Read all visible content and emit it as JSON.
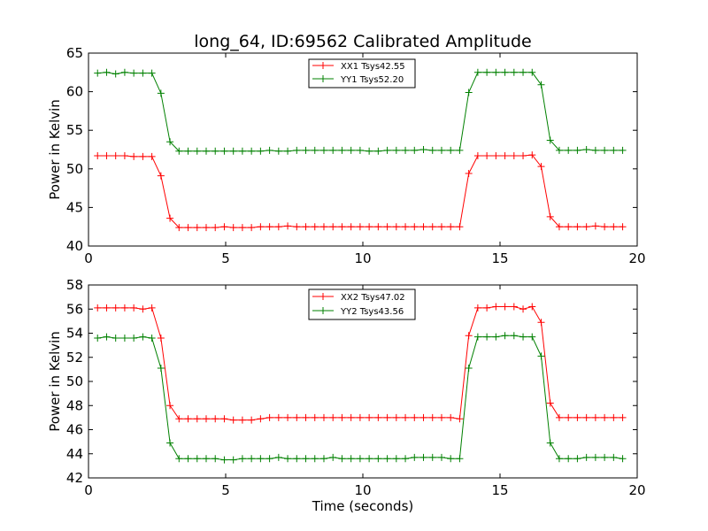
{
  "chart_data": [
    {
      "type": "line",
      "title": "long_64, ID:69562 Calibrated Amplitude",
      "xlabel": "",
      "ylabel": "Power in Kelvin",
      "xlim": [
        0,
        20
      ],
      "ylim": [
        40,
        65
      ],
      "xticks": [
        0,
        5,
        10,
        15,
        20
      ],
      "yticks": [
        40,
        45,
        50,
        55,
        60,
        65
      ],
      "grid": false,
      "legend": "top-center",
      "x": [
        0.33,
        0.66,
        0.99,
        1.32,
        1.65,
        1.98,
        2.31,
        2.64,
        2.97,
        3.3,
        3.63,
        3.96,
        4.29,
        4.62,
        4.95,
        5.28,
        5.61,
        5.94,
        6.27,
        6.6,
        6.93,
        7.26,
        7.59,
        7.92,
        8.25,
        8.58,
        8.91,
        9.24,
        9.57,
        9.9,
        10.23,
        10.56,
        10.89,
        11.22,
        11.55,
        11.88,
        12.21,
        12.54,
        12.87,
        13.2,
        13.53,
        13.86,
        14.19,
        14.52,
        14.85,
        15.18,
        15.51,
        15.84,
        16.17,
        16.5,
        16.83,
        17.16,
        17.49,
        17.82,
        18.15,
        18.48,
        18.81,
        19.14,
        19.47
      ],
      "series": [
        {
          "name": "XX1 Tsys42.55",
          "color": "#ff0000",
          "values": [
            51.7,
            51.7,
            51.7,
            51.7,
            51.6,
            51.6,
            51.6,
            49.1,
            43.6,
            42.4,
            42.4,
            42.4,
            42.4,
            42.4,
            42.5,
            42.4,
            42.4,
            42.4,
            42.5,
            42.5,
            42.5,
            42.6,
            42.5,
            42.5,
            42.5,
            42.5,
            42.5,
            42.5,
            42.5,
            42.5,
            42.5,
            42.5,
            42.5,
            42.5,
            42.5,
            42.5,
            42.5,
            42.5,
            42.5,
            42.5,
            42.5,
            49.4,
            51.7,
            51.7,
            51.7,
            51.7,
            51.7,
            51.7,
            51.8,
            50.3,
            43.8,
            42.5,
            42.5,
            42.5,
            42.5,
            42.6,
            42.5,
            42.5,
            42.5
          ]
        },
        {
          "name": "YY1 Tsys52.20",
          "color": "#008000",
          "values": [
            62.4,
            62.5,
            62.3,
            62.5,
            62.4,
            62.4,
            62.4,
            59.8,
            53.5,
            52.3,
            52.3,
            52.3,
            52.3,
            52.3,
            52.3,
            52.3,
            52.3,
            52.3,
            52.3,
            52.4,
            52.3,
            52.3,
            52.4,
            52.4,
            52.4,
            52.4,
            52.4,
            52.4,
            52.4,
            52.4,
            52.3,
            52.3,
            52.4,
            52.4,
            52.4,
            52.4,
            52.5,
            52.4,
            52.4,
            52.4,
            52.4,
            59.9,
            62.5,
            62.5,
            62.5,
            62.5,
            62.5,
            62.5,
            62.5,
            60.9,
            53.7,
            52.4,
            52.4,
            52.4,
            52.5,
            52.4,
            52.4,
            52.4,
            52.4
          ]
        }
      ]
    },
    {
      "type": "line",
      "title": "",
      "xlabel": "Time (seconds)",
      "ylabel": "Power in Kelvin",
      "xlim": [
        0,
        20
      ],
      "ylim": [
        42,
        58
      ],
      "xticks": [
        0,
        5,
        10,
        15,
        20
      ],
      "yticks": [
        42,
        44,
        46,
        48,
        50,
        52,
        54,
        56,
        58
      ],
      "grid": false,
      "legend": "top-center",
      "x": [
        0.33,
        0.66,
        0.99,
        1.32,
        1.65,
        1.98,
        2.31,
        2.64,
        2.97,
        3.3,
        3.63,
        3.96,
        4.29,
        4.62,
        4.95,
        5.28,
        5.61,
        5.94,
        6.27,
        6.6,
        6.93,
        7.26,
        7.59,
        7.92,
        8.25,
        8.58,
        8.91,
        9.24,
        9.57,
        9.9,
        10.23,
        10.56,
        10.89,
        11.22,
        11.55,
        11.88,
        12.21,
        12.54,
        12.87,
        13.2,
        13.53,
        13.86,
        14.19,
        14.52,
        14.85,
        15.18,
        15.51,
        15.84,
        16.17,
        16.5,
        16.83,
        17.16,
        17.49,
        17.82,
        18.15,
        18.48,
        18.81,
        19.14,
        19.47
      ],
      "series": [
        {
          "name": "XX2 Tsys47.02",
          "color": "#ff0000",
          "values": [
            56.1,
            56.1,
            56.1,
            56.1,
            56.1,
            56.0,
            56.1,
            53.6,
            48.0,
            46.9,
            46.9,
            46.9,
            46.9,
            46.9,
            46.9,
            46.8,
            46.8,
            46.8,
            46.9,
            47.0,
            47.0,
            47.0,
            47.0,
            47.0,
            47.0,
            47.0,
            47.0,
            47.0,
            47.0,
            47.0,
            47.0,
            47.0,
            47.0,
            47.0,
            47.0,
            47.0,
            47.0,
            47.0,
            47.0,
            47.0,
            46.9,
            53.8,
            56.1,
            56.1,
            56.2,
            56.2,
            56.2,
            56.0,
            56.2,
            54.9,
            48.2,
            47.0,
            47.0,
            47.0,
            47.0,
            47.0,
            47.0,
            47.0,
            47.0
          ]
        },
        {
          "name": "YY2 Tsys43.56",
          "color": "#008000",
          "values": [
            53.6,
            53.7,
            53.6,
            53.6,
            53.6,
            53.7,
            53.6,
            51.1,
            44.9,
            43.6,
            43.6,
            43.6,
            43.6,
            43.6,
            43.5,
            43.5,
            43.6,
            43.6,
            43.6,
            43.6,
            43.7,
            43.6,
            43.6,
            43.6,
            43.6,
            43.6,
            43.7,
            43.6,
            43.6,
            43.6,
            43.6,
            43.6,
            43.6,
            43.6,
            43.6,
            43.7,
            43.7,
            43.7,
            43.7,
            43.6,
            43.6,
            51.1,
            53.7,
            53.7,
            53.7,
            53.8,
            53.8,
            53.7,
            53.7,
            52.1,
            44.9,
            43.6,
            43.6,
            43.6,
            43.7,
            43.7,
            43.7,
            43.7,
            43.6
          ]
        }
      ]
    }
  ]
}
